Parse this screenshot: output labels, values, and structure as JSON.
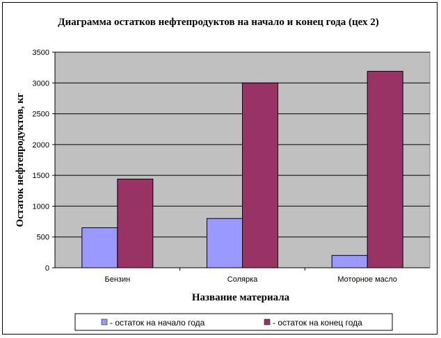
{
  "chart_data": {
    "type": "bar",
    "title": "Диаграмма остатков нефтепродуктов на начало и конец года (цех 2)",
    "xlabel": "Название материала",
    "ylabel": "Остаток нефтепродуктов, кг",
    "categories": [
      "Бензин",
      "Солярка",
      "Моторное масло"
    ],
    "ylim": [
      0,
      3500
    ],
    "yticks": [
      "0",
      "500",
      "1000",
      "1500",
      "2000",
      "2500",
      "3000",
      "3500"
    ],
    "grid": true,
    "legend_position": "bottom",
    "series": [
      {
        "name": "- остаток на начало года",
        "values": [
          650,
          800,
          200
        ],
        "color": "#9999ff"
      },
      {
        "name": "- остаток на конец года",
        "values": [
          1440,
          3000,
          3190
        ],
        "color": "#993366"
      }
    ],
    "plot_background": "#c0c0c0"
  }
}
